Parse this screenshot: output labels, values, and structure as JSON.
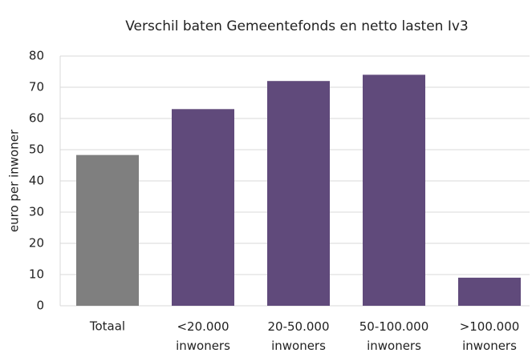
{
  "chart_data": {
    "type": "bar",
    "title": "Verschil baten Gemeentefonds en netto lasten Iv3",
    "y_label": "euro per inwoner",
    "categories": [
      "Totaal",
      "<20.000 inwoners",
      "20-50.000 inwoners",
      "50-100.000 inwoners",
      ">100.000 inwoners"
    ],
    "values": [
      48.3,
      63,
      72,
      74,
      9
    ],
    "colors": [
      "#7f7f7f",
      "#604a7b",
      "#604a7b",
      "#604a7b",
      "#604a7b"
    ],
    "ylim": [
      0,
      80
    ],
    "yticks": [
      0,
      10,
      20,
      30,
      40,
      50,
      60,
      70,
      80
    ],
    "grid": true
  }
}
